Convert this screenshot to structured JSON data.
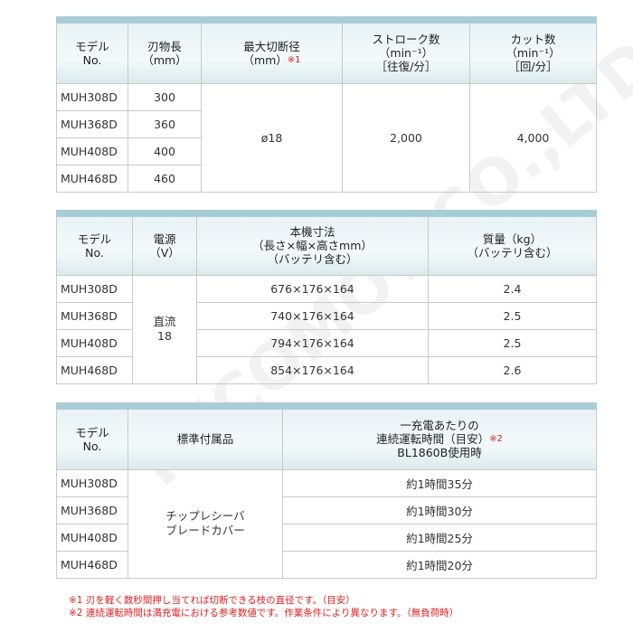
{
  "watermark": "RECOMOV CO.,LTD",
  "table1": {
    "headers": {
      "model": [
        "モデル",
        "No."
      ],
      "blade": [
        "刃物長",
        "（mm）"
      ],
      "cut": [
        "最大切断径",
        "（mm）"
      ],
      "cut_note": "※1",
      "stroke": [
        "ストローク数",
        "（min⁻¹）",
        "［往復/分］"
      ],
      "cuts": [
        "カット数",
        "（min⁻¹）",
        "［回/分］"
      ]
    },
    "rows": [
      {
        "model": "MUH308D",
        "blade": "300"
      },
      {
        "model": "MUH368D",
        "blade": "360"
      },
      {
        "model": "MUH408D",
        "blade": "400"
      },
      {
        "model": "MUH468D",
        "blade": "460"
      }
    ],
    "cut": "ø18",
    "stroke": "2,000",
    "cuts": "4,000"
  },
  "table2": {
    "headers": {
      "model": [
        "モデル",
        "No."
      ],
      "power": [
        "電源",
        "（V）"
      ],
      "dims": [
        "本機寸法",
        "（長さ×幅×高さmm）",
        "（バッテリ含む）"
      ],
      "mass": [
        "質量（kg）",
        "（バッテリ含む）"
      ]
    },
    "power": [
      "直流",
      "18"
    ],
    "rows": [
      {
        "model": "MUH308D",
        "dims": "676×176×164",
        "mass": "2.4"
      },
      {
        "model": "MUH368D",
        "dims": "740×176×164",
        "mass": "2.5"
      },
      {
        "model": "MUH408D",
        "dims": "794×176×164",
        "mass": "2.5"
      },
      {
        "model": "MUH468D",
        "dims": "854×176×164",
        "mass": "2.6"
      }
    ]
  },
  "table3": {
    "headers": {
      "model": [
        "モデル",
        "No."
      ],
      "acc": "標準付属品",
      "run": [
        "一充電あたりの",
        "連続運転時間（目安）",
        "BL1860B使用時"
      ],
      "run_note": "※2"
    },
    "accessories": [
      "チップレシーバ",
      "ブレードカバー"
    ],
    "rows": [
      {
        "model": "MUH308D",
        "run": "約1時間35分"
      },
      {
        "model": "MUH368D",
        "run": "約1時間30分"
      },
      {
        "model": "MUH408D",
        "run": "約1時間25分"
      },
      {
        "model": "MUH468D",
        "run": "約1時間20分"
      }
    ]
  },
  "notes": [
    "※1 刃を軽く数秒間押し当てれば切断できる枝の直径です。（目安）",
    "※2 連続運転時間は満充電における参考数値です。作業条件により異なります。（無負荷時）"
  ]
}
